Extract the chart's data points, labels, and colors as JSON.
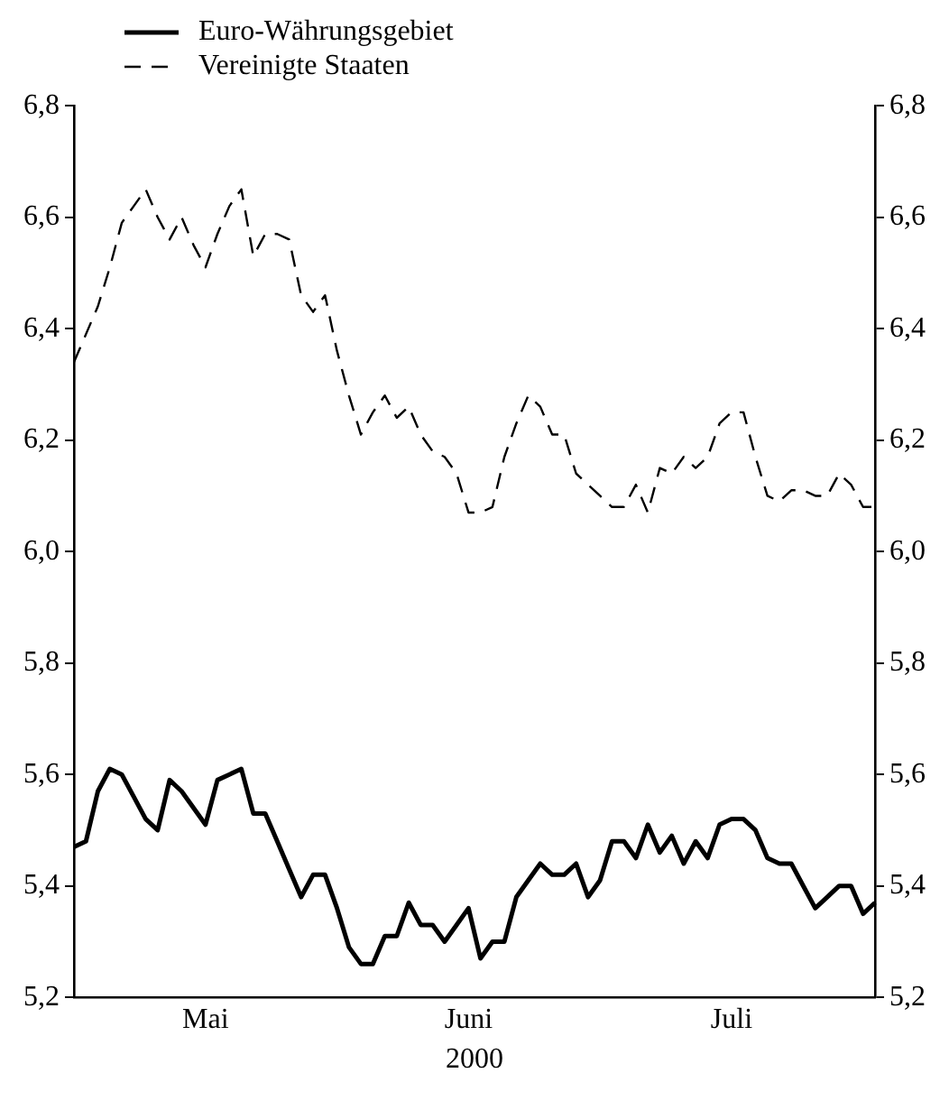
{
  "chart_data": {
    "type": "line",
    "xlabel": "2000",
    "categories": [
      null,
      null,
      null,
      null,
      null,
      null,
      null,
      null,
      null,
      null,
      null,
      "Mai",
      null,
      null,
      null,
      null,
      null,
      null,
      null,
      null,
      null,
      null,
      null,
      null,
      null,
      null,
      null,
      null,
      null,
      null,
      null,
      null,
      null,
      "Juni",
      null,
      null,
      null,
      null,
      null,
      null,
      null,
      null,
      null,
      null,
      null,
      null,
      null,
      null,
      null,
      null,
      null,
      null,
      null,
      null,
      null,
      "Juli",
      null,
      null,
      null,
      null,
      null,
      null,
      null,
      null,
      null,
      null,
      null,
      null
    ],
    "series": [
      {
        "name": "Euro-Währungsgebiet",
        "color": "#000000",
        "line_style": "solid",
        "values": [
          5.47,
          5.48,
          5.57,
          5.61,
          5.6,
          5.56,
          5.52,
          5.5,
          5.59,
          5.57,
          5.54,
          5.51,
          5.59,
          5.6,
          5.61,
          5.53,
          5.53,
          5.48,
          5.43,
          5.38,
          5.42,
          5.42,
          5.36,
          5.29,
          5.26,
          5.26,
          5.31,
          5.31,
          5.37,
          5.33,
          5.33,
          5.3,
          5.33,
          5.36,
          5.27,
          5.3,
          5.3,
          5.38,
          5.41,
          5.44,
          5.42,
          5.42,
          5.44,
          5.38,
          5.41,
          5.48,
          5.48,
          5.45,
          5.51,
          5.46,
          5.49,
          5.44,
          5.48,
          5.45,
          5.51,
          5.52,
          5.52,
          5.5,
          5.45,
          5.44,
          5.44,
          5.4,
          5.36,
          5.38,
          5.4,
          5.4,
          5.35,
          5.37
        ]
      },
      {
        "name": "Vereinigte Staaten",
        "color": "#000000",
        "line_style": "dashed",
        "values": [
          6.34,
          6.39,
          6.44,
          6.51,
          6.59,
          6.62,
          6.65,
          6.6,
          6.56,
          6.6,
          6.55,
          6.51,
          6.57,
          6.62,
          6.65,
          6.53,
          6.57,
          6.57,
          6.56,
          6.46,
          6.43,
          6.46,
          6.36,
          6.28,
          6.21,
          6.25,
          6.28,
          6.24,
          6.26,
          6.21,
          6.18,
          6.17,
          6.14,
          6.07,
          6.07,
          6.08,
          6.17,
          6.23,
          6.28,
          6.26,
          6.21,
          6.21,
          6.14,
          6.12,
          6.1,
          6.08,
          6.08,
          6.12,
          6.07,
          6.15,
          6.14,
          6.17,
          6.15,
          6.17,
          6.23,
          6.25,
          6.25,
          6.17,
          6.1,
          6.09,
          6.11,
          6.11,
          6.1,
          6.1,
          6.14,
          6.12,
          6.08,
          6.08
        ]
      }
    ],
    "ylim": [
      5.2,
      6.8
    ],
    "yticks": [
      {
        "value": 5.2,
        "label": "5,2"
      },
      {
        "value": 5.4,
        "label": "5,4"
      },
      {
        "value": 5.6,
        "label": "5,6"
      },
      {
        "value": 5.8,
        "label": "5,8"
      },
      {
        "value": 6.0,
        "label": "6,0"
      },
      {
        "value": 6.2,
        "label": "6,2"
      },
      {
        "value": 6.4,
        "label": "6,4"
      },
      {
        "value": 6.6,
        "label": "6,6"
      },
      {
        "value": 6.8,
        "label": "6,8"
      }
    ],
    "y2lim": [
      5.2,
      6.8
    ],
    "y2ticks": [
      {
        "value": 5.2,
        "label": "5,2"
      },
      {
        "value": 5.4,
        "label": "5,4"
      },
      {
        "value": 5.6,
        "label": "5,6"
      },
      {
        "value": 5.8,
        "label": "5,8"
      },
      {
        "value": 6.0,
        "label": "6,0"
      },
      {
        "value": 6.2,
        "label": "6,2"
      },
      {
        "value": 6.4,
        "label": "6,4"
      },
      {
        "value": 6.6,
        "label": "6,6"
      },
      {
        "value": 6.8,
        "label": "6,8"
      }
    ],
    "grid": false,
    "legend": "top left",
    "marker": "none"
  }
}
